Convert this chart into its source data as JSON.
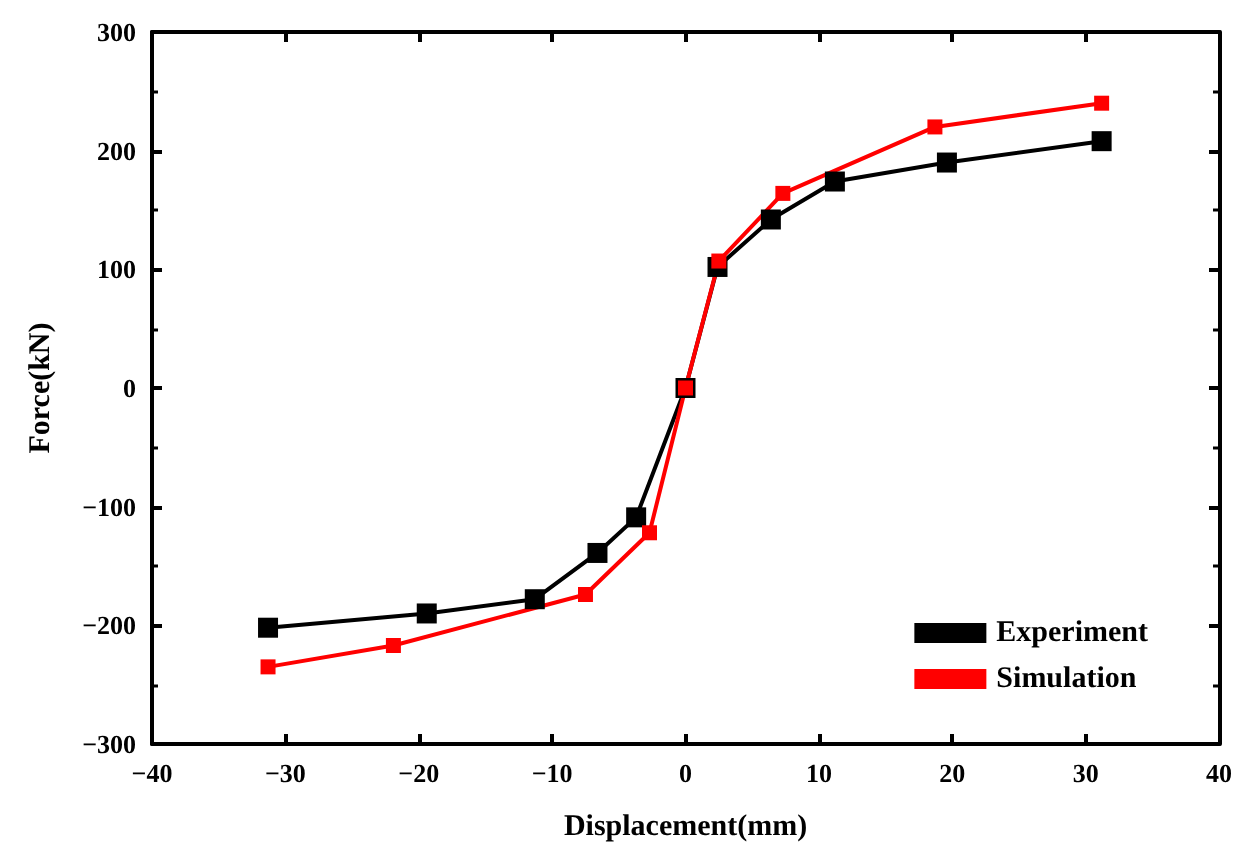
{
  "chart_data": {
    "type": "line",
    "xlabel": "Displacement(mm)",
    "ylabel": "Force(kN)",
    "xlim": [
      -40,
      40
    ],
    "xticks": [
      -40,
      -30,
      -20,
      -10,
      0,
      10,
      20,
      30,
      40
    ],
    "ylim": [
      -300,
      300
    ],
    "yticks": [
      -300,
      -200,
      -100,
      0,
      100,
      200,
      300
    ],
    "series": [
      {
        "name": "Experiment",
        "color": "#000000",
        "x": [
          -31.3,
          -19.4,
          -11.3,
          -6.6,
          -3.7,
          0,
          2.4,
          6.4,
          11.2,
          19.6,
          31.2
        ],
        "values": [
          -202,
          -190,
          -178,
          -139,
          -109,
          0,
          102,
          142,
          174,
          190,
          208
        ]
      },
      {
        "name": "Simulation",
        "color": "#ff0000",
        "x": [
          -31.3,
          -21.9,
          -7.5,
          -2.7,
          0,
          2.5,
          7.3,
          18.7,
          31.2
        ],
        "values": [
          -235,
          -217,
          -174,
          -122,
          0,
          107,
          164,
          220,
          240
        ]
      }
    ],
    "marker": "square",
    "line_style": "solid",
    "grid": false,
    "legend": "bottom right"
  }
}
